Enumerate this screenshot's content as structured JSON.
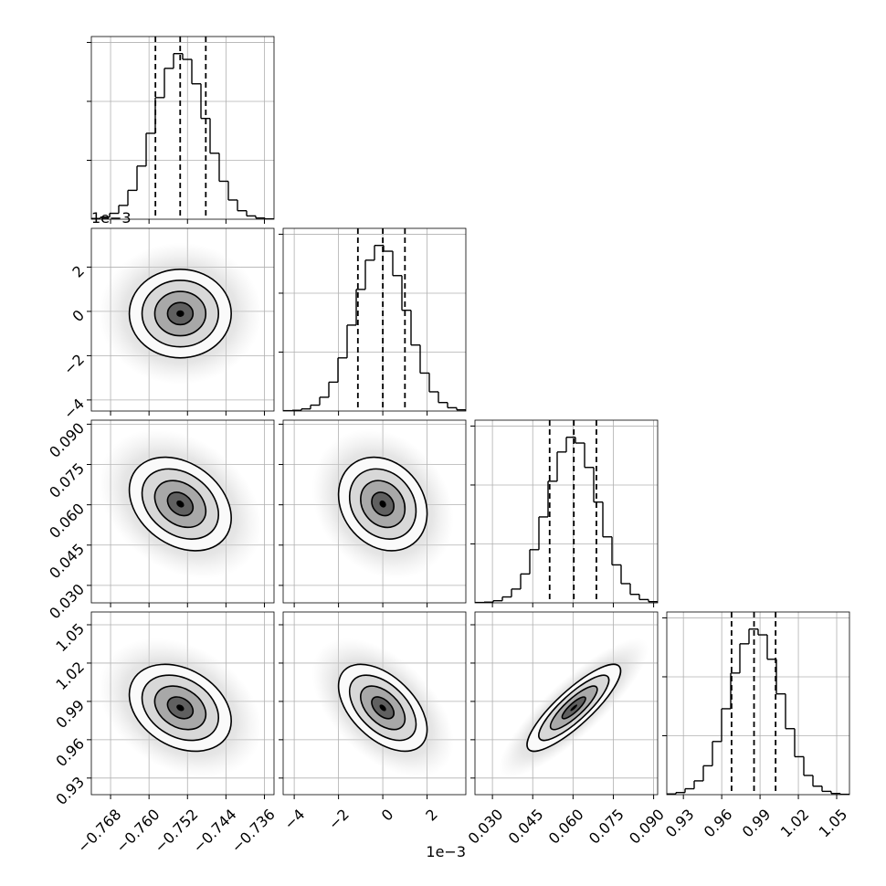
{
  "chart_data": {
    "type": "corner",
    "hist_ylim": [
      0,
      1550
    ],
    "hist_yticks": [
      500,
      1000,
      1500
    ],
    "grid": true,
    "color": "#000000",
    "params": [
      {
        "lim": [
          -0.772,
          -0.734
        ],
        "ticks": [
          {
            "value": -0.768,
            "label": "−0.768"
          },
          {
            "value": -0.76,
            "label": "−0.760"
          },
          {
            "value": -0.752,
            "label": "−0.752"
          },
          {
            "value": -0.744,
            "label": "−0.744"
          },
          {
            "value": -0.736,
            "label": "−0.736"
          }
        ],
        "hist": {
          "bins": [
            -0.772,
            -0.7701,
            -0.7682,
            -0.7663,
            -0.7644,
            -0.7625,
            -0.7606,
            -0.7587,
            -0.7568,
            -0.7549,
            -0.753,
            -0.7511,
            -0.7492,
            -0.7473,
            -0.7454,
            -0.7435,
            -0.7416,
            -0.7397,
            -0.7378,
            -0.7359,
            -0.734
          ],
          "counts": [
            6,
            18,
            50,
            117,
            245,
            451,
            729,
            1032,
            1280,
            1405,
            1356,
            1149,
            855,
            560,
            322,
            163,
            72,
            28,
            10,
            3
          ]
        },
        "quantiles": [
          -0.75867,
          -0.75352,
          -0.74819
        ]
      },
      {
        "lim": [
          -4.5,
          3.75
        ],
        "offset_label": "1e−3",
        "ticks": [
          {
            "value": -4,
            "label": "−4"
          },
          {
            "value": -2,
            "label": "−2"
          },
          0,
          2
        ],
        "hist": {
          "bins": [
            -4.5,
            -4.0875,
            -3.675,
            -3.2625,
            -2.85,
            -2.4375,
            -2.025,
            -1.6125,
            -1.2,
            -0.7875,
            -0.375,
            0.0375,
            0.45,
            0.8625,
            1.275,
            1.6875,
            2.1,
            2.5125,
            2.925,
            3.3375,
            3.75
          ],
          "counts": [
            3,
            6,
            18,
            50,
            117,
            245,
            451,
            729,
            1032,
            1280,
            1405,
            1356,
            1149,
            855,
            560,
            322,
            163,
            72,
            28,
            10
          ]
        },
        "quantiles": [
          -1.125,
          0.0,
          1.0
        ]
      },
      {
        "lim": [
          0.0235,
          0.0915
        ],
        "ticks": [
          {
            "value": 0.03,
            "label": "0.030"
          },
          0.045,
          {
            "value": 0.06,
            "label": "0.060"
          },
          0.075,
          {
            "value": 0.09,
            "label": "0.090"
          }
        ],
        "hist": {
          "bins": [
            0.0235,
            0.0269,
            0.0303,
            0.0337,
            0.0371,
            0.0405,
            0.0439,
            0.0473,
            0.0507,
            0.0541,
            0.0575,
            0.0609,
            0.0643,
            0.0677,
            0.0711,
            0.0745,
            0.0779,
            0.0813,
            0.0847,
            0.0881,
            0.0915
          ],
          "counts": [
            3,
            6,
            18,
            50,
            117,
            245,
            451,
            729,
            1032,
            1280,
            1405,
            1356,
            1149,
            855,
            560,
            322,
            163,
            72,
            28,
            10
          ]
        },
        "quantiles": [
          0.0513,
          0.0603,
          0.0687
        ]
      },
      {
        "lim": [
          0.917,
          1.06
        ],
        "ticks": [
          0.93,
          0.96,
          0.99,
          1.02,
          1.05
        ],
        "hist": {
          "bins": [
            0.917,
            0.92415,
            0.9313,
            0.93845,
            0.9456,
            0.95275,
            0.9599,
            0.96705,
            0.9742,
            0.98135,
            0.9885,
            0.99565,
            1.0028,
            1.00995,
            1.0171,
            1.02425,
            1.0314,
            1.03855,
            1.0457,
            1.05285,
            1.06
          ],
          "counts": [
            6,
            18,
            50,
            117,
            245,
            451,
            729,
            1032,
            1280,
            1405,
            1356,
            1149,
            855,
            560,
            322,
            163,
            72,
            28,
            10,
            3
          ]
        },
        "quantiles": [
          0.9677,
          0.9853,
          1.0022
        ]
      }
    ],
    "pairs": [
      [
        {
          "center": [
            -0.7535,
            -0.1
          ],
          "sigma": [
            0.0053,
            1.0
          ],
          "rho": 0.0
        }
      ],
      [
        {
          "center": [
            -0.7535,
            0.0603
          ],
          "sigma": [
            0.0053,
            0.0087
          ],
          "rho": -0.3
        },
        {
          "center": [
            0.0,
            0.0603
          ],
          "sigma": [
            1.0,
            0.0087
          ],
          "rho": -0.2
        }
      ],
      [
        {
          "center": [
            -0.7535,
            0.985
          ],
          "sigma": [
            0.0053,
            0.017
          ],
          "rho": -0.3
        },
        {
          "center": [
            0.0,
            0.985
          ],
          "sigma": [
            1.0,
            0.017
          ],
          "rho": -0.5
        },
        {
          "center": [
            0.0603,
            0.985
          ],
          "sigma": [
            0.0087,
            0.017
          ],
          "rho": 0.85
        }
      ]
    ]
  }
}
